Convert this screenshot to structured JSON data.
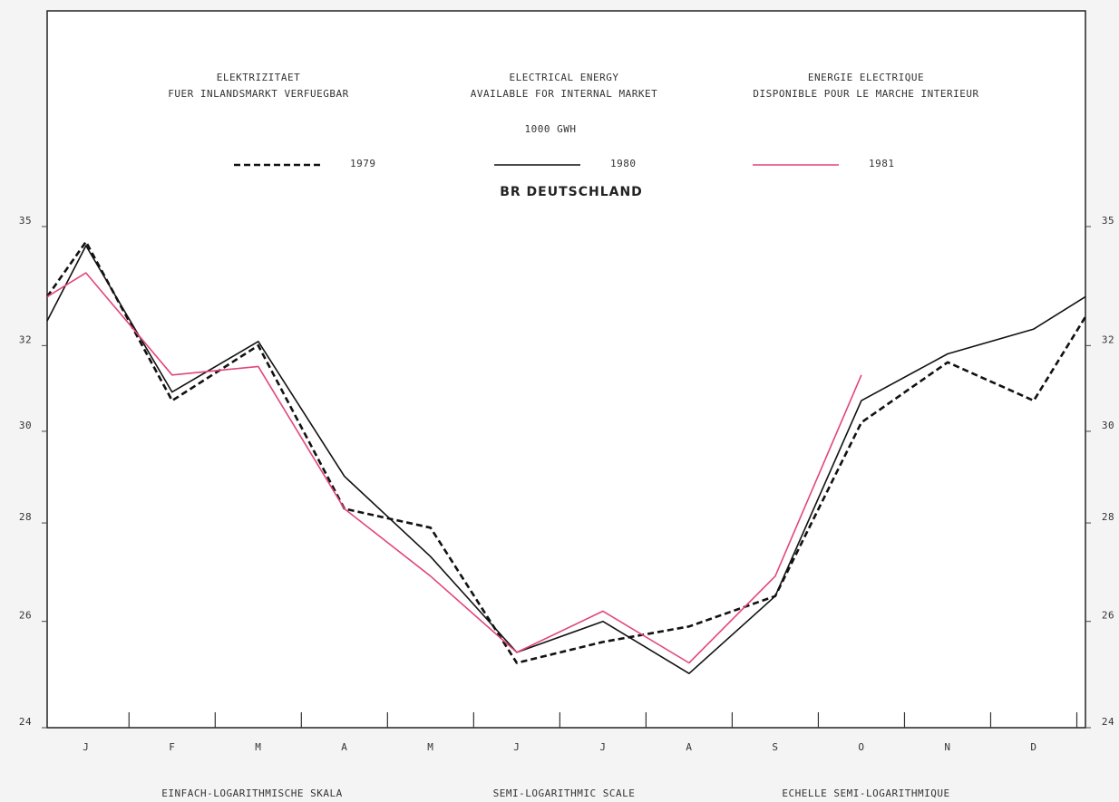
{
  "chart_data": {
    "type": "line",
    "titles": [
      [
        "ELEKTRIZITAET",
        "FUER INLANDSMARKT VERFUEGBAR"
      ],
      [
        "ELECTRICAL ENERGY",
        "AVAILABLE FOR INTERNAL MARKET"
      ],
      [
        "ENERGIE ELECTRIQUE",
        "DISPONIBLE POUR LE MARCHE INTERIEUR"
      ]
    ],
    "unit": "1000 GWH",
    "subtitle": "BR DEUTSCHLAND",
    "scale_notes": [
      "EINFACH-LOGARITHMISCHE SKALA",
      "SEMI-LOGARITHMIC SCALE",
      "ECHELLE SEMI-LOGARITHMIQUE"
    ],
    "x": [
      -0.45,
      0,
      1,
      2,
      3,
      4,
      5,
      6,
      7,
      8,
      9,
      10,
      11,
      11.6
    ],
    "xlim": [
      -0.45,
      11.6
    ],
    "xticks": [
      {
        "value": 0,
        "label": "J"
      },
      {
        "value": 1,
        "label": "F"
      },
      {
        "value": 2,
        "label": "M"
      },
      {
        "value": 3,
        "label": "A"
      },
      {
        "value": 4,
        "label": "M"
      },
      {
        "value": 5,
        "label": "J"
      },
      {
        "value": 6,
        "label": "J"
      },
      {
        "value": 7,
        "label": "A"
      },
      {
        "value": 8,
        "label": "S"
      },
      {
        "value": 9,
        "label": "O"
      },
      {
        "value": 10,
        "label": "N"
      },
      {
        "value": 11,
        "label": "D"
      }
    ],
    "ylim": [
      24,
      35
    ],
    "yticks": [
      24,
      26,
      28,
      30,
      32,
      35
    ],
    "log_scale": true,
    "series": [
      {
        "name": "1979",
        "color": "#111111",
        "style": "dashed",
        "values": [
          33.2,
          34.6,
          30.7,
          32.0,
          28.3,
          27.9,
          25.2,
          25.6,
          25.9,
          26.5,
          30.2,
          31.6,
          30.7,
          32.7
        ]
      },
      {
        "name": "1980",
        "color": "#111111",
        "style": "solid",
        "values": [
          32.6,
          34.5,
          30.9,
          32.1,
          29.0,
          27.3,
          25.4,
          26.0,
          25.0,
          26.5,
          30.7,
          31.8,
          32.4,
          33.2
        ]
      },
      {
        "name": "1981",
        "color": "#e2457a",
        "style": "solid",
        "values": [
          33.2,
          33.8,
          31.3,
          31.5,
          28.3,
          26.9,
          25.4,
          26.2,
          25.2,
          26.9,
          31.3,
          null,
          null,
          null
        ]
      }
    ]
  }
}
